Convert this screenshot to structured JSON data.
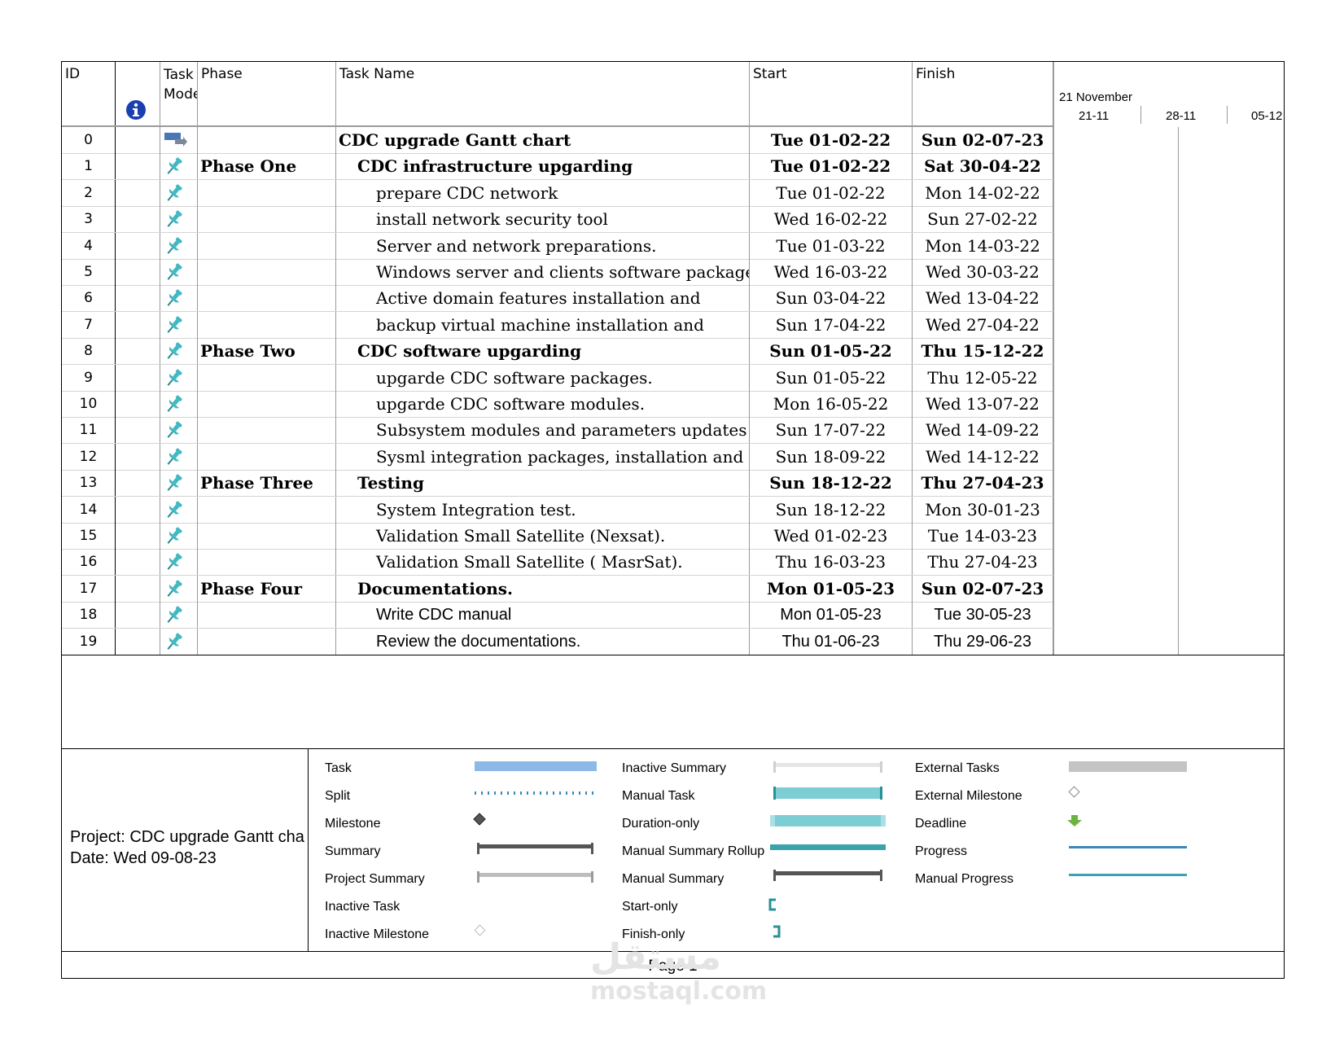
{
  "columns": {
    "id": "ID",
    "task_mode": "Task Mode",
    "phase": "Phase",
    "task_name": "Task Name",
    "start": "Start",
    "finish": "Finish"
  },
  "timeline": {
    "month": "21 November",
    "weeks": [
      "21-11",
      "28-11",
      "05-12"
    ]
  },
  "rows": [
    {
      "id": "0",
      "phase": "",
      "name": "CDC upgrade Gantt chart",
      "start": "Tue 01-02-22",
      "finish": "Sun 02-07-23",
      "level": 0,
      "bold": true,
      "mode_icon": "project-summary-icon"
    },
    {
      "id": "1",
      "phase": "Phase One",
      "name": "CDC infrastructure upgarding",
      "start": "Tue 01-02-22",
      "finish": "Sat 30-04-22",
      "level": 1,
      "bold": true,
      "mode_icon": "pin-icon"
    },
    {
      "id": "2",
      "phase": "",
      "name": "prepare CDC network",
      "start": "Tue 01-02-22",
      "finish": "Mon 14-02-22",
      "level": 2,
      "bold": false,
      "mode_icon": "pin-icon"
    },
    {
      "id": "3",
      "phase": "",
      "name": "install network security tool",
      "start": "Wed 16-02-22",
      "finish": "Sun 27-02-22",
      "level": 2,
      "bold": false,
      "mode_icon": "pin-icon"
    },
    {
      "id": "4",
      "phase": "",
      "name": "Server and network preparations.",
      "start": "Tue 01-03-22",
      "finish": "Mon 14-03-22",
      "level": 2,
      "bold": false,
      "mode_icon": "pin-icon"
    },
    {
      "id": "5",
      "phase": "",
      "name": "Windows server and clients software packages",
      "start": "Wed 16-03-22",
      "finish": "Wed 30-03-22",
      "level": 2,
      "bold": false,
      "mode_icon": "pin-icon"
    },
    {
      "id": "6",
      "phase": "",
      "name": "Active domain features installation and",
      "start": "Sun 03-04-22",
      "finish": "Wed 13-04-22",
      "level": 2,
      "bold": false,
      "mode_icon": "pin-icon"
    },
    {
      "id": "7",
      "phase": "",
      "name": "backup virtual machine installation and",
      "start": "Sun 17-04-22",
      "finish": "Wed 27-04-22",
      "level": 2,
      "bold": false,
      "mode_icon": "pin-icon"
    },
    {
      "id": "8",
      "phase": "Phase Two",
      "name": "CDC software upgarding",
      "start": "Sun 01-05-22",
      "finish": "Thu 15-12-22",
      "level": 1,
      "bold": true,
      "mode_icon": "pin-icon"
    },
    {
      "id": "9",
      "phase": "",
      "name": "upgarde CDC software packages.",
      "start": "Sun 01-05-22",
      "finish": "Thu 12-05-22",
      "level": 2,
      "bold": false,
      "mode_icon": "pin-icon"
    },
    {
      "id": "10",
      "phase": "",
      "name": "upgarde CDC software modules.",
      "start": "Mon 16-05-22",
      "finish": "Wed 13-07-22",
      "level": 2,
      "bold": false,
      "mode_icon": "pin-icon"
    },
    {
      "id": "11",
      "phase": "",
      "name": "Subsystem modules and parameters updates",
      "start": "Sun 17-07-22",
      "finish": "Wed 14-09-22",
      "level": 2,
      "bold": false,
      "mode_icon": "pin-icon"
    },
    {
      "id": "12",
      "phase": "",
      "name": "Sysml integration packages, installation and",
      "start": "Sun 18-09-22",
      "finish": "Wed 14-12-22",
      "level": 2,
      "bold": false,
      "mode_icon": "pin-icon"
    },
    {
      "id": "13",
      "phase": "Phase Three",
      "name": "Testing",
      "start": "Sun 18-12-22",
      "finish": "Thu 27-04-23",
      "level": 1,
      "bold": true,
      "mode_icon": "pin-icon"
    },
    {
      "id": "14",
      "phase": "",
      "name": "System Integration test.",
      "start": "Sun 18-12-22",
      "finish": "Mon 30-01-23",
      "level": 2,
      "bold": false,
      "mode_icon": "pin-icon"
    },
    {
      "id": "15",
      "phase": "",
      "name": "Validation Small Satellite (Nexsat).",
      "start": "Wed 01-02-23",
      "finish": "Tue 14-03-23",
      "level": 2,
      "bold": false,
      "mode_icon": "pin-icon"
    },
    {
      "id": "16",
      "phase": "",
      "name": "Validation Small Satellite ( MasrSat).",
      "start": "Thu 16-03-23",
      "finish": "Thu 27-04-23",
      "level": 2,
      "bold": false,
      "mode_icon": "pin-icon"
    },
    {
      "id": "17",
      "phase": "Phase Four",
      "name": "Documentations.",
      "start": "Mon 01-05-23",
      "finish": "Sun 02-07-23",
      "level": 1,
      "bold": true,
      "mode_icon": "pin-icon"
    },
    {
      "id": "18",
      "phase": "",
      "name": "Write CDC manual",
      "start": "Mon 01-05-23",
      "finish": "Tue 30-05-23",
      "level": 2,
      "bold": false,
      "sans": true,
      "mode_icon": "pin-icon"
    },
    {
      "id": "19",
      "phase": "",
      "name": "Review the documentations.",
      "start": "Thu 01-06-23",
      "finish": "Thu 29-06-23",
      "level": 2,
      "bold": false,
      "sans": true,
      "mode_icon": "pin-icon"
    }
  ],
  "project_info": {
    "project": "Project: CDC upgrade Gantt cha",
    "date": "Date: Wed 09-08-23"
  },
  "legend": {
    "col1": [
      "Task",
      "Split",
      "Milestone",
      "Summary",
      "Project Summary",
      "Inactive Task",
      "Inactive Milestone"
    ],
    "col2": [
      "Inactive Summary",
      "Manual Task",
      "Duration-only",
      "Manual Summary Rollup",
      "Manual Summary",
      "Start-only",
      "Finish-only"
    ],
    "col3": [
      "External Tasks",
      "External Milestone",
      "Deadline",
      "Progress",
      "Manual Progress"
    ]
  },
  "footer": {
    "page": "Page 1"
  },
  "watermark": {
    "arabic": "مستقل",
    "latin": "mostaql.com"
  },
  "colors": {
    "task_bar": "#8db9e8",
    "manual_task": "#7dcdd4",
    "manual_rollup": "#3aa3ac",
    "progress": "#3c87b8",
    "pin": "#41b8c0",
    "info_icon": "#1a3fb0",
    "deadline": "#6db33f"
  }
}
